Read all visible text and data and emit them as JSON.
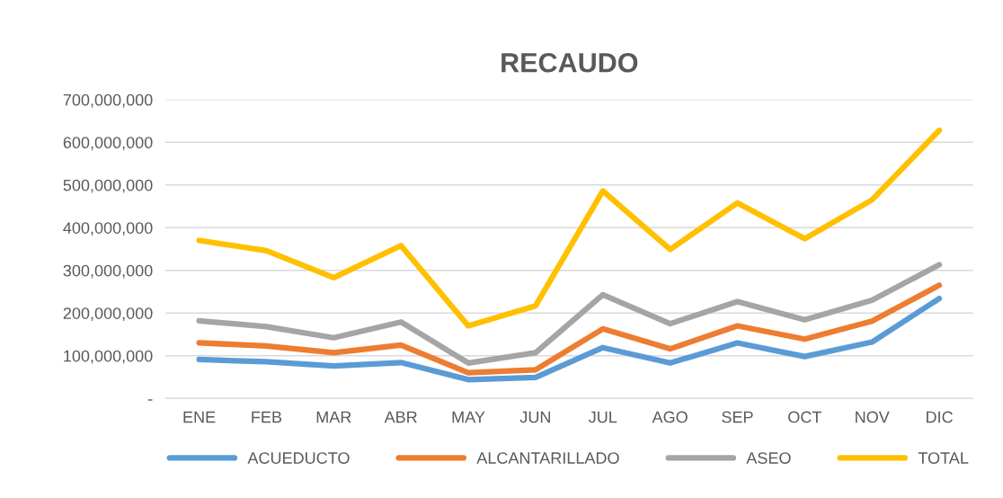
{
  "chart_data": {
    "type": "line",
    "title": "RECAUDO",
    "categories": [
      "ENE",
      "FEB",
      "MAR",
      "ABR",
      "MAY",
      "JUN",
      "JUL",
      "AGO",
      "SEP",
      "OCT",
      "NOV",
      "DIC"
    ],
    "series": [
      {
        "name": "ACUEDUCTO",
        "color": "#5b9bd5",
        "values": [
          91000000,
          86000000,
          76000000,
          84000000,
          44000000,
          49000000,
          119000000,
          83000000,
          130000000,
          98000000,
          132000000,
          234000000
        ]
      },
      {
        "name": "ALCANTARILLADO",
        "color": "#ed7d31",
        "values": [
          130000000,
          123000000,
          107000000,
          125000000,
          60000000,
          67000000,
          163000000,
          116000000,
          170000000,
          139000000,
          181000000,
          265000000
        ]
      },
      {
        "name": "ASEO",
        "color": "#a5a5a5",
        "values": [
          182000000,
          168000000,
          142000000,
          179000000,
          83000000,
          107000000,
          243000000,
          175000000,
          227000000,
          184000000,
          230000000,
          313000000
        ]
      },
      {
        "name": "TOTAL",
        "color": "#ffc000",
        "values": [
          370000000,
          346000000,
          283000000,
          358000000,
          170000000,
          217000000,
          486000000,
          349000000,
          458000000,
          374000000,
          465000000,
          628000000
        ]
      }
    ],
    "ylim": [
      0,
      700000000
    ],
    "yticks": [
      {
        "value": 0,
        "label": "-"
      },
      {
        "value": 100000000,
        "label": "100,000,000"
      },
      {
        "value": 200000000,
        "label": "200,000,000"
      },
      {
        "value": 300000000,
        "label": "300,000,000"
      },
      {
        "value": 400000000,
        "label": "400,000,000"
      },
      {
        "value": 500000000,
        "label": "500,000,000"
      },
      {
        "value": 600000000,
        "label": "600,000,000"
      },
      {
        "value": 700000000,
        "label": "700,000,000"
      }
    ],
    "grid": "y",
    "legend": "bottom",
    "marker": "none",
    "line_style": "solid"
  }
}
